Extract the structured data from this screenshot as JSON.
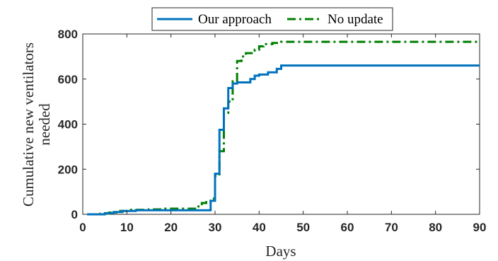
{
  "chart_data": {
    "type": "line",
    "title": "",
    "xlabel": "Days",
    "ylabel_lines": [
      "Cumulative new ventilators",
      "needed"
    ],
    "xlim": [
      0,
      90
    ],
    "ylim": [
      0,
      800
    ],
    "x_ticks": [
      0,
      10,
      20,
      30,
      40,
      50,
      60,
      70,
      80,
      90
    ],
    "y_ticks": [
      0,
      200,
      400,
      600,
      800
    ],
    "grid": false,
    "legend_position": "top-center",
    "series": [
      {
        "name": "Our approach",
        "color": "#0072BD",
        "style": "solid",
        "step": true,
        "points": [
          [
            1,
            0
          ],
          [
            5,
            0
          ],
          [
            5,
            5
          ],
          [
            7,
            5
          ],
          [
            7,
            10
          ],
          [
            9,
            10
          ],
          [
            9,
            15
          ],
          [
            12,
            15
          ],
          [
            12,
            18
          ],
          [
            29,
            18
          ],
          [
            29,
            60
          ],
          [
            30,
            60
          ],
          [
            30,
            180
          ],
          [
            31,
            180
          ],
          [
            31,
            375
          ],
          [
            32,
            375
          ],
          [
            32,
            470
          ],
          [
            33,
            470
          ],
          [
            33,
            560
          ],
          [
            34,
            560
          ],
          [
            34,
            580
          ],
          [
            35,
            580
          ],
          [
            35,
            585
          ],
          [
            38,
            585
          ],
          [
            38,
            600
          ],
          [
            39,
            600
          ],
          [
            39,
            615
          ],
          [
            40,
            615
          ],
          [
            40,
            620
          ],
          [
            42,
            620
          ],
          [
            42,
            630
          ],
          [
            44,
            630
          ],
          [
            44,
            645
          ],
          [
            45,
            645
          ],
          [
            45,
            660
          ],
          [
            90,
            660
          ]
        ]
      },
      {
        "name": "No update",
        "color": "#008000",
        "style": "dashdot",
        "step": true,
        "points": [
          [
            1,
            0
          ],
          [
            4,
            0
          ],
          [
            4,
            3
          ],
          [
            6,
            3
          ],
          [
            6,
            8
          ],
          [
            8,
            8
          ],
          [
            8,
            15
          ],
          [
            10,
            15
          ],
          [
            10,
            20
          ],
          [
            15,
            20
          ],
          [
            15,
            22
          ],
          [
            18,
            22
          ],
          [
            18,
            25
          ],
          [
            26,
            25
          ],
          [
            26,
            35
          ],
          [
            27,
            35
          ],
          [
            27,
            50
          ],
          [
            28,
            50
          ],
          [
            28,
            60
          ],
          [
            29,
            60
          ],
          [
            29,
            70
          ],
          [
            30,
            70
          ],
          [
            30,
            170
          ],
          [
            31,
            170
          ],
          [
            31,
            280
          ],
          [
            32,
            280
          ],
          [
            32,
            450
          ],
          [
            33,
            450
          ],
          [
            33,
            500
          ],
          [
            34,
            500
          ],
          [
            34,
            590
          ],
          [
            35,
            590
          ],
          [
            35,
            680
          ],
          [
            36,
            680
          ],
          [
            36,
            700
          ],
          [
            37,
            700
          ],
          [
            37,
            715
          ],
          [
            39,
            715
          ],
          [
            39,
            730
          ],
          [
            40,
            730
          ],
          [
            40,
            745
          ],
          [
            41,
            745
          ],
          [
            41,
            755
          ],
          [
            43,
            755
          ],
          [
            43,
            760
          ],
          [
            45,
            760
          ],
          [
            45,
            765
          ],
          [
            90,
            765
          ]
        ]
      }
    ]
  }
}
